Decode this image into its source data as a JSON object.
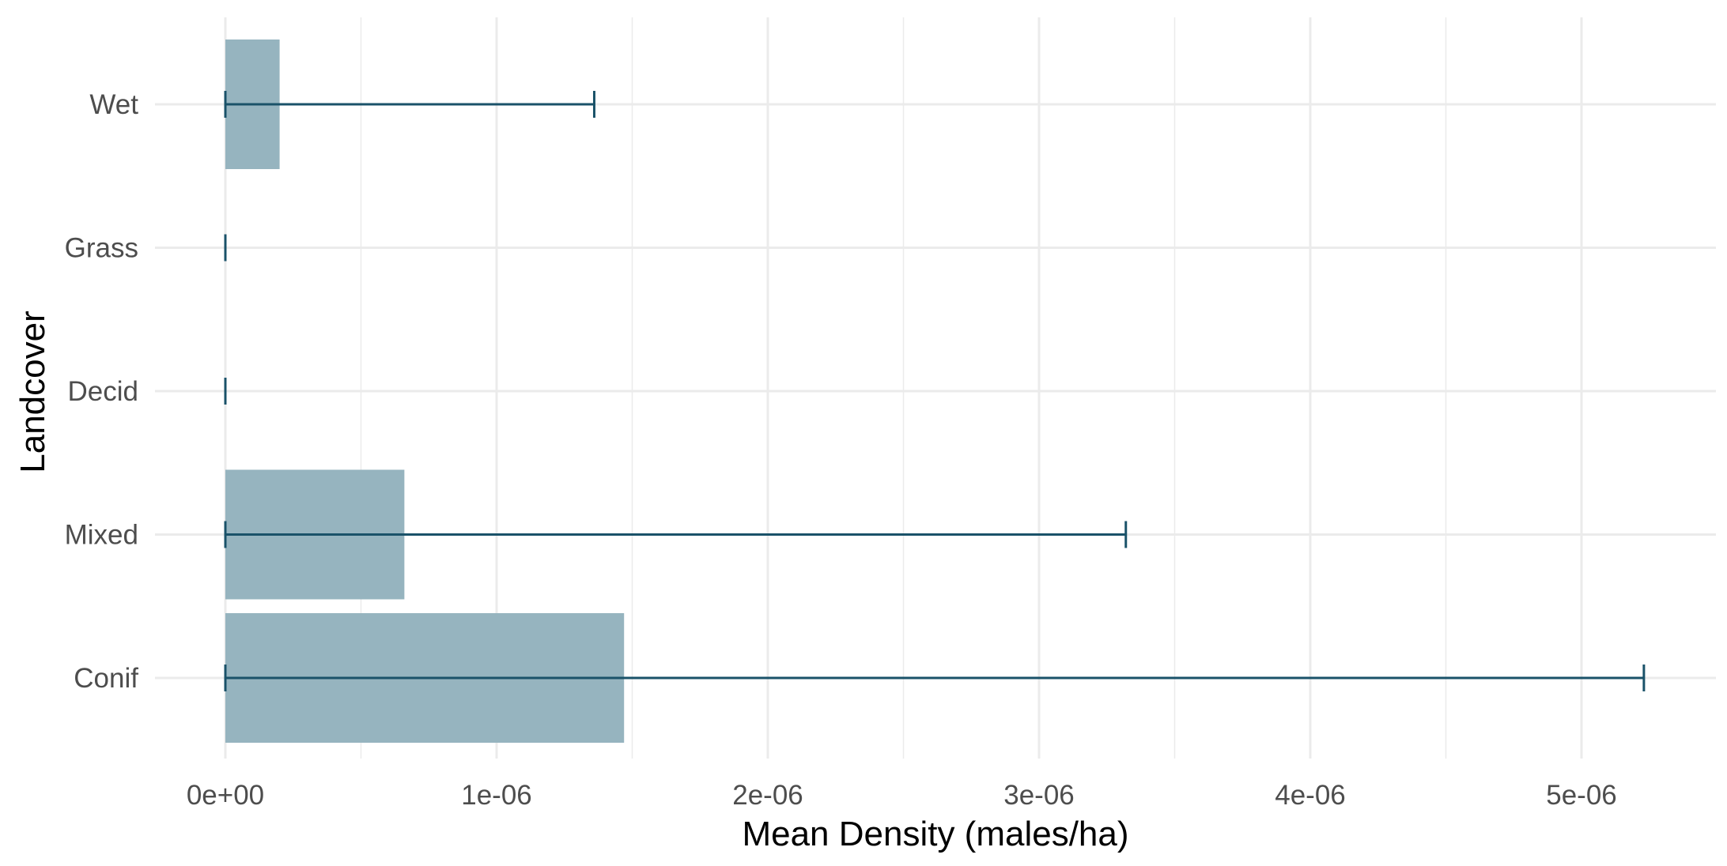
{
  "chart_data": {
    "type": "bar",
    "orientation": "horizontal",
    "xlabel": "Mean Density (males/ha)",
    "ylabel": "Landcover",
    "categories": [
      "Conif",
      "Mixed",
      "Decid",
      "Grass",
      "Wet"
    ],
    "values": [
      1.47e-06,
      6.6e-07,
      0.0,
      0.0,
      2e-07
    ],
    "error_lower": [
      0.0,
      0.0,
      0.0,
      0.0,
      0.0
    ],
    "error_upper": [
      5.23e-06,
      3.32e-06,
      0.0,
      0.0,
      1.36e-06
    ],
    "xlim": [
      -2.6e-07,
      5.5e-06
    ],
    "xticks": [
      0,
      1e-06,
      2e-06,
      3e-06,
      4e-06,
      5e-06
    ],
    "xtick_labels": [
      "0e+00",
      "1e-06",
      "2e-06",
      "3e-06",
      "4e-06",
      "5e-06"
    ],
    "grid": true,
    "bar_color": "#96b4bf",
    "error_color": "#1a5269",
    "grid_color": "#ebebeb"
  }
}
